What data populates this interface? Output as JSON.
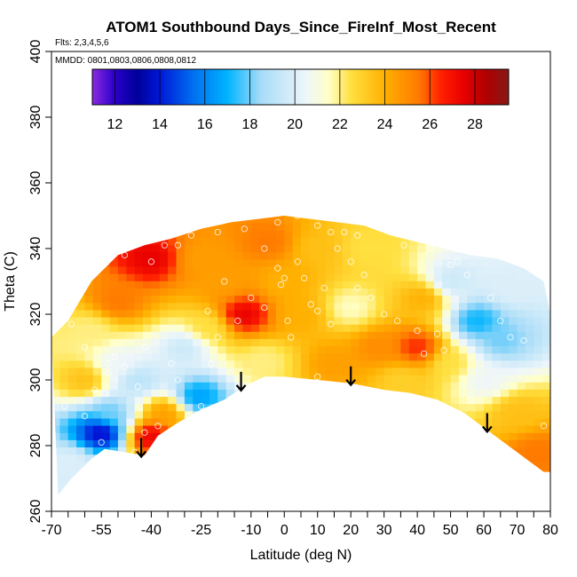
{
  "chart_data": {
    "type": "heatmap",
    "title": "ATOM1 Southbound Days_Since_FireInf_Most_Recent",
    "subtitle_flights": "Flts: 2,3,4,5,6",
    "subtitle_dates": "MMDD: 0801,0803,0806,0808,0812",
    "xlabel": "Latitude (deg N)",
    "ylabel": "Theta (C)",
    "xlim": [
      -70,
      80
    ],
    "ylim": [
      260,
      400
    ],
    "x_tick_labels": [
      "-70",
      "-55",
      "-40",
      "-25",
      "-10",
      "0",
      "10",
      "20",
      "30",
      "40",
      "50",
      "60",
      "70",
      "80"
    ],
    "x_tick_values": [
      -70,
      -55,
      -40,
      -25,
      -10,
      0,
      10,
      20,
      30,
      40,
      50,
      60,
      70,
      80
    ],
    "x_minor_ticks": [
      -65,
      -60,
      -50,
      -45,
      -35,
      -30,
      -20,
      -15,
      -5,
      5,
      15,
      25,
      35,
      45,
      55,
      65,
      75
    ],
    "y_tick_labels": [
      "260",
      "280",
      "300",
      "320",
      "340",
      "360",
      "380",
      "400"
    ],
    "y_tick_values": [
      260,
      280,
      300,
      320,
      340,
      360,
      380,
      400
    ],
    "colorbar": {
      "range": [
        11,
        29.5
      ],
      "tick_labels": [
        "12",
        "14",
        "16",
        "18",
        "20",
        "22",
        "24",
        "26",
        "28"
      ],
      "tick_values": [
        12,
        14,
        16,
        18,
        20,
        22,
        24,
        26,
        28
      ],
      "stops": [
        {
          "v": 11.0,
          "c": "#8b2be2"
        },
        {
          "v": 12.0,
          "c": "#2a00c8"
        },
        {
          "v": 13.0,
          "c": "#00009a"
        },
        {
          "v": 14.0,
          "c": "#0018d8"
        },
        {
          "v": 15.5,
          "c": "#0070f0"
        },
        {
          "v": 17.0,
          "c": "#00b4ff"
        },
        {
          "v": 18.5,
          "c": "#a8dcf8"
        },
        {
          "v": 20.5,
          "c": "#eef6fa"
        },
        {
          "v": 21.5,
          "c": "#ffffc8"
        },
        {
          "v": 22.5,
          "c": "#ffe040"
        },
        {
          "v": 24.0,
          "c": "#ffb000"
        },
        {
          "v": 25.5,
          "c": "#ff7a00"
        },
        {
          "v": 26.5,
          "c": "#ff2000"
        },
        {
          "v": 27.5,
          "c": "#e80000"
        },
        {
          "v": 28.5,
          "c": "#b00000"
        },
        {
          "v": 29.5,
          "c": "#881818"
        }
      ]
    },
    "coverage": {
      "top": [
        [
          -70,
          313
        ],
        [
          -65,
          318
        ],
        [
          -58,
          330
        ],
        [
          -50,
          338
        ],
        [
          -42,
          341
        ],
        [
          -34,
          343
        ],
        [
          -25,
          346
        ],
        [
          -16,
          348
        ],
        [
          -8,
          349
        ],
        [
          0,
          350
        ],
        [
          8,
          349
        ],
        [
          16,
          348
        ],
        [
          24,
          347
        ],
        [
          32,
          344
        ],
        [
          40,
          342
        ],
        [
          48,
          340
        ],
        [
          56,
          338
        ],
        [
          64,
          337
        ],
        [
          72,
          334
        ],
        [
          78,
          330
        ],
        [
          80,
          320
        ],
        [
          80,
          300
        ]
      ],
      "bottom": [
        [
          80,
          272
        ],
        [
          78,
          272
        ],
        [
          70,
          278
        ],
        [
          62,
          284
        ],
        [
          54,
          290
        ],
        [
          46,
          294
        ],
        [
          38,
          296
        ],
        [
          30,
          297
        ],
        [
          20,
          299
        ],
        [
          10,
          300
        ],
        [
          0,
          301
        ],
        [
          -6,
          301
        ],
        [
          -12,
          298
        ],
        [
          -18,
          294
        ],
        [
          -25,
          291
        ],
        [
          -32,
          287
        ],
        [
          -38,
          283
        ],
        [
          -42,
          277
        ],
        [
          -48,
          278
        ],
        [
          -54,
          279
        ],
        [
          -58,
          276
        ],
        [
          -64,
          270
        ],
        [
          -68,
          265
        ]
      ]
    },
    "field_anchors": [
      {
        "lat": -60,
        "theta": 300,
        "v": 23.5
      },
      {
        "lat": -55,
        "theta": 284,
        "v": 13.5
      },
      {
        "lat": -52,
        "theta": 290,
        "v": 18.0
      },
      {
        "lat": -50,
        "theta": 305,
        "v": 20.5
      },
      {
        "lat": -44,
        "theta": 300,
        "v": 19.0
      },
      {
        "lat": -40,
        "theta": 283,
        "v": 27.5
      },
      {
        "lat": -36,
        "theta": 290,
        "v": 24.5
      },
      {
        "lat": -30,
        "theta": 310,
        "v": 19.5
      },
      {
        "lat": -26,
        "theta": 295,
        "v": 16.5
      },
      {
        "lat": -23,
        "theta": 316,
        "v": 22.5
      },
      {
        "lat": -12,
        "theta": 320,
        "v": 27.5
      },
      {
        "lat": -6,
        "theta": 306,
        "v": 22.0
      },
      {
        "lat": -50,
        "theta": 324,
        "v": 25.5
      },
      {
        "lat": -40,
        "theta": 337,
        "v": 27.5
      },
      {
        "lat": -25,
        "theta": 337,
        "v": 24.5
      },
      {
        "lat": -5,
        "theta": 342,
        "v": 25.5
      },
      {
        "lat": 10,
        "theta": 340,
        "v": 23.5
      },
      {
        "lat": 25,
        "theta": 340,
        "v": 22.5
      },
      {
        "lat": 5,
        "theta": 320,
        "v": 24.0
      },
      {
        "lat": 20,
        "theta": 322,
        "v": 21.5
      },
      {
        "lat": 15,
        "theta": 305,
        "v": 24.5
      },
      {
        "lat": 28,
        "theta": 310,
        "v": 25.0
      },
      {
        "lat": 40,
        "theta": 310,
        "v": 26.5
      },
      {
        "lat": 42,
        "theta": 325,
        "v": 24.0
      },
      {
        "lat": 50,
        "theta": 330,
        "v": 19.5
      },
      {
        "lat": 58,
        "theta": 318,
        "v": 17.0
      },
      {
        "lat": 65,
        "theta": 312,
        "v": 18.0
      },
      {
        "lat": 68,
        "theta": 328,
        "v": 20.0
      },
      {
        "lat": 60,
        "theta": 300,
        "v": 20.5
      },
      {
        "lat": 50,
        "theta": 305,
        "v": 22.5
      },
      {
        "lat": 70,
        "theta": 290,
        "v": 23.5
      },
      {
        "lat": 76,
        "theta": 278,
        "v": 25.5
      },
      {
        "lat": 35,
        "theta": 300,
        "v": 23.0
      },
      {
        "lat": 0,
        "theta": 330,
        "v": 24.0
      },
      {
        "lat": -18,
        "theta": 330,
        "v": 24.5
      },
      {
        "lat": -64,
        "theta": 275,
        "v": 20.0
      },
      {
        "lat": -58,
        "theta": 315,
        "v": 22.0
      }
    ],
    "sample_points": [
      [
        -64,
        317
      ],
      [
        -60,
        310
      ],
      [
        -57,
        297
      ],
      [
        -53,
        305
      ],
      [
        -53,
        302
      ],
      [
        -51,
        307
      ],
      [
        -54,
        296
      ],
      [
        -48,
        304
      ],
      [
        -42,
        310
      ],
      [
        -55,
        281
      ],
      [
        -45,
        278
      ],
      [
        -42,
        284
      ],
      [
        -38,
        286
      ],
      [
        -32,
        300
      ],
      [
        -25,
        292
      ],
      [
        -22,
        305
      ],
      [
        -23,
        321
      ],
      [
        -18,
        330
      ],
      [
        -14,
        318
      ],
      [
        -10,
        325
      ],
      [
        -6,
        340
      ],
      [
        -2,
        334
      ],
      [
        -1,
        329
      ],
      [
        0,
        331
      ],
      [
        1,
        318
      ],
      [
        4,
        336
      ],
      [
        6,
        331
      ],
      [
        8,
        323
      ],
      [
        10,
        321
      ],
      [
        12,
        328
      ],
      [
        14,
        345
      ],
      [
        16,
        340
      ],
      [
        18,
        345
      ],
      [
        20,
        336
      ],
      [
        22,
        328
      ],
      [
        24,
        332
      ],
      [
        26,
        325
      ],
      [
        30,
        320
      ],
      [
        34,
        318
      ],
      [
        40,
        315
      ],
      [
        42,
        308
      ],
      [
        48,
        309
      ],
      [
        50,
        335
      ],
      [
        55,
        332
      ],
      [
        62,
        325
      ],
      [
        65,
        318
      ],
      [
        68,
        313
      ],
      [
        72,
        312
      ],
      [
        -40,
        336
      ],
      [
        -36,
        341
      ],
      [
        -32,
        341
      ],
      [
        -28,
        344
      ],
      [
        -20,
        345
      ],
      [
        -12,
        346
      ],
      [
        -2,
        348
      ],
      [
        4,
        350
      ],
      [
        10,
        347
      ],
      [
        22,
        344
      ],
      [
        36,
        341
      ],
      [
        44,
        340
      ],
      [
        52,
        336
      ],
      [
        -60,
        289
      ],
      [
        -66,
        292
      ],
      [
        -44,
        298
      ],
      [
        -34,
        305
      ],
      [
        0,
        299
      ],
      [
        10,
        301
      ],
      [
        30,
        295
      ],
      [
        38,
        292
      ],
      [
        56,
        294
      ],
      [
        64,
        296
      ],
      [
        78,
        286
      ],
      [
        -48,
        338
      ],
      [
        -20,
        313
      ],
      [
        -6,
        322
      ],
      [
        2,
        313
      ],
      [
        14,
        317
      ],
      [
        46,
        314
      ]
    ],
    "arrows_at_latitude": [
      -43,
      -13,
      20,
      61
    ]
  }
}
